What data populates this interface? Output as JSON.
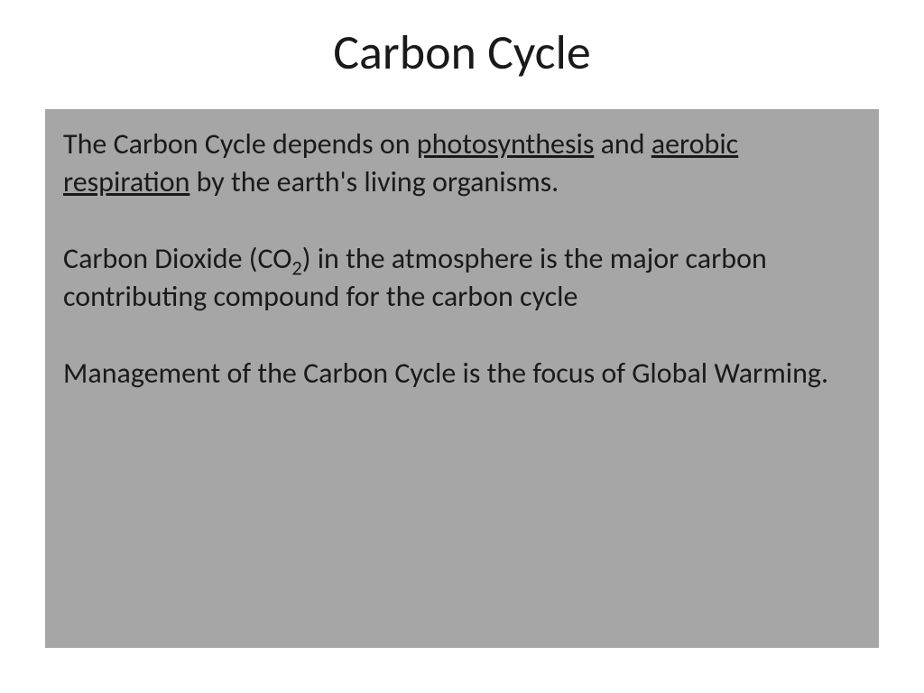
{
  "slide": {
    "title": "Carbon Cycle",
    "background_color": "#ffffff",
    "content_box_color": "#a6a6a6",
    "text_color": "#1a1a1a",
    "title_fontsize": 54,
    "body_fontsize": 32,
    "paragraphs": {
      "p1_part1": "The Carbon Cycle depends on ",
      "p1_underline1": "photosynthesis",
      "p1_part2": " and ",
      "p1_underline2": "aerobic respiration",
      "p1_part3": " by the earth's living organisms.",
      "p2_part1": "Carbon Dioxide (CO",
      "p2_sub": "2",
      "p2_part2": ") in the atmosphere is the major carbon contributing compound for the carbon cycle",
      "p3": "Management of the Carbon Cycle is the focus of Global Warming."
    }
  }
}
